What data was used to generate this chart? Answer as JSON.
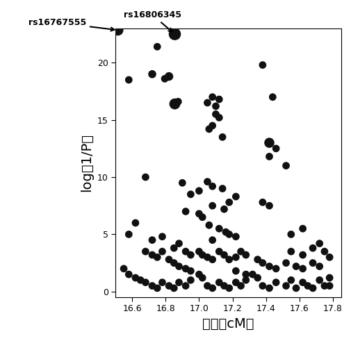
{
  "xlabel": "位置（cM）",
  "ylabel": "log（1/P）",
  "xlim": [
    16.5,
    17.85
  ],
  "ylim": [
    -0.5,
    23
  ],
  "xticks": [
    16.6,
    16.8,
    17.0,
    17.2,
    17.4,
    17.6,
    17.8
  ],
  "yticks": [
    0,
    5,
    10,
    15,
    20
  ],
  "annotation1_label": "rs16806345",
  "annotation1_point": [
    16.855,
    22.5
  ],
  "annotation1_text": [
    16.72,
    23.8
  ],
  "annotation2_label": "rs16767555",
  "annotation2_point": [
    16.515,
    22.85
  ],
  "annotation2_text": [
    15.98,
    23.5
  ],
  "bg_color": "#ffffff",
  "dot_color": "#111111",
  "points": [
    [
      16.515,
      22.85,
      130
    ],
    [
      16.855,
      22.5,
      160
    ],
    [
      16.75,
      21.4,
      60
    ],
    [
      16.72,
      19.0,
      70
    ],
    [
      16.82,
      18.8,
      80
    ],
    [
      16.795,
      18.6,
      60
    ],
    [
      16.58,
      18.5,
      60
    ],
    [
      16.855,
      16.4,
      130
    ],
    [
      16.875,
      16.6,
      60
    ],
    [
      17.08,
      17.0,
      60
    ],
    [
      17.12,
      16.8,
      60
    ],
    [
      17.05,
      16.5,
      60
    ],
    [
      17.1,
      16.2,
      60
    ],
    [
      17.1,
      15.5,
      60
    ],
    [
      17.12,
      15.2,
      60
    ],
    [
      17.08,
      14.5,
      60
    ],
    [
      17.06,
      14.2,
      60
    ],
    [
      17.14,
      13.5,
      60
    ],
    [
      17.42,
      13.0,
      110
    ],
    [
      17.46,
      12.5,
      60
    ],
    [
      17.42,
      11.8,
      60
    ],
    [
      17.52,
      11.0,
      60
    ],
    [
      17.44,
      17.0,
      60
    ],
    [
      17.38,
      19.8,
      60
    ],
    [
      17.05,
      9.6,
      60
    ],
    [
      17.08,
      9.2,
      60
    ],
    [
      17.14,
      9.0,
      60
    ],
    [
      17.0,
      8.8,
      60
    ],
    [
      16.95,
      8.5,
      60
    ],
    [
      17.22,
      8.3,
      60
    ],
    [
      17.18,
      7.8,
      60
    ],
    [
      17.08,
      7.5,
      60
    ],
    [
      17.15,
      7.2,
      60
    ],
    [
      16.92,
      7.0,
      60
    ],
    [
      17.42,
      7.5,
      60
    ],
    [
      17.38,
      7.8,
      60
    ],
    [
      17.0,
      6.8,
      60
    ],
    [
      17.02,
      6.5,
      60
    ],
    [
      17.06,
      5.8,
      60
    ],
    [
      17.12,
      5.5,
      60
    ],
    [
      17.16,
      5.2,
      60
    ],
    [
      17.18,
      5.0,
      60
    ],
    [
      17.22,
      4.8,
      60
    ],
    [
      17.08,
      4.5,
      60
    ],
    [
      16.62,
      6.0,
      60
    ],
    [
      16.58,
      5.0,
      60
    ],
    [
      16.72,
      4.5,
      60
    ],
    [
      16.78,
      4.8,
      60
    ],
    [
      16.88,
      4.2,
      60
    ],
    [
      16.85,
      3.8,
      60
    ],
    [
      16.92,
      3.5,
      60
    ],
    [
      16.95,
      3.2,
      60
    ],
    [
      17.0,
      3.5,
      60
    ],
    [
      17.02,
      3.2,
      60
    ],
    [
      17.05,
      3.0,
      60
    ],
    [
      17.08,
      2.8,
      60
    ],
    [
      17.12,
      3.5,
      60
    ],
    [
      17.15,
      3.2,
      60
    ],
    [
      17.18,
      2.8,
      60
    ],
    [
      17.22,
      3.0,
      60
    ],
    [
      17.25,
      3.5,
      60
    ],
    [
      17.28,
      3.2,
      60
    ],
    [
      16.68,
      3.5,
      60
    ],
    [
      16.72,
      3.2,
      60
    ],
    [
      16.75,
      3.0,
      60
    ],
    [
      16.78,
      3.5,
      60
    ],
    [
      16.82,
      2.8,
      60
    ],
    [
      16.85,
      2.5,
      60
    ],
    [
      16.88,
      2.2,
      60
    ],
    [
      16.92,
      2.0,
      60
    ],
    [
      16.95,
      1.8,
      60
    ],
    [
      17.35,
      2.8,
      60
    ],
    [
      17.38,
      2.5,
      60
    ],
    [
      17.42,
      2.2,
      60
    ],
    [
      17.46,
      2.0,
      60
    ],
    [
      17.52,
      2.5,
      60
    ],
    [
      17.58,
      2.2,
      60
    ],
    [
      17.62,
      2.0,
      60
    ],
    [
      17.68,
      2.5,
      60
    ],
    [
      17.72,
      2.2,
      60
    ],
    [
      16.55,
      2.0,
      60
    ],
    [
      16.58,
      1.5,
      60
    ],
    [
      16.62,
      1.2,
      60
    ],
    [
      16.65,
      1.0,
      60
    ],
    [
      16.68,
      0.8,
      60
    ],
    [
      16.72,
      0.5,
      60
    ],
    [
      16.75,
      0.3,
      60
    ],
    [
      16.78,
      0.8,
      60
    ],
    [
      16.82,
      0.5,
      60
    ],
    [
      16.85,
      0.3,
      60
    ],
    [
      16.88,
      0.8,
      60
    ],
    [
      16.92,
      0.5,
      60
    ],
    [
      16.95,
      1.0,
      60
    ],
    [
      17.0,
      1.5,
      60
    ],
    [
      17.02,
      1.2,
      60
    ],
    [
      17.05,
      0.5,
      60
    ],
    [
      17.08,
      0.3,
      60
    ],
    [
      17.12,
      0.8,
      60
    ],
    [
      17.15,
      0.5,
      60
    ],
    [
      17.18,
      0.3,
      60
    ],
    [
      17.22,
      0.8,
      60
    ],
    [
      17.25,
      0.5,
      60
    ],
    [
      17.28,
      1.0,
      60
    ],
    [
      17.32,
      1.5,
      60
    ],
    [
      17.35,
      1.2,
      60
    ],
    [
      17.38,
      0.5,
      60
    ],
    [
      17.42,
      0.3,
      60
    ],
    [
      17.46,
      0.8,
      60
    ],
    [
      17.52,
      0.5,
      60
    ],
    [
      17.55,
      1.0,
      60
    ],
    [
      17.58,
      0.3,
      60
    ],
    [
      17.62,
      0.8,
      60
    ],
    [
      17.65,
      0.5,
      60
    ],
    [
      17.68,
      0.3,
      60
    ],
    [
      17.72,
      1.0,
      60
    ],
    [
      17.75,
      0.5,
      60
    ],
    [
      17.22,
      1.8,
      60
    ],
    [
      17.28,
      1.5,
      60
    ],
    [
      17.55,
      3.5,
      60
    ],
    [
      17.62,
      3.2,
      60
    ],
    [
      17.68,
      3.8,
      60
    ],
    [
      17.72,
      4.2,
      60
    ],
    [
      17.75,
      3.5,
      60
    ],
    [
      17.55,
      5.0,
      60
    ],
    [
      17.62,
      5.5,
      60
    ],
    [
      16.68,
      10.0,
      60
    ],
    [
      16.9,
      9.5,
      60
    ],
    [
      17.78,
      0.5,
      60
    ],
    [
      17.78,
      1.2,
      60
    ],
    [
      17.78,
      3.0,
      60
    ]
  ]
}
